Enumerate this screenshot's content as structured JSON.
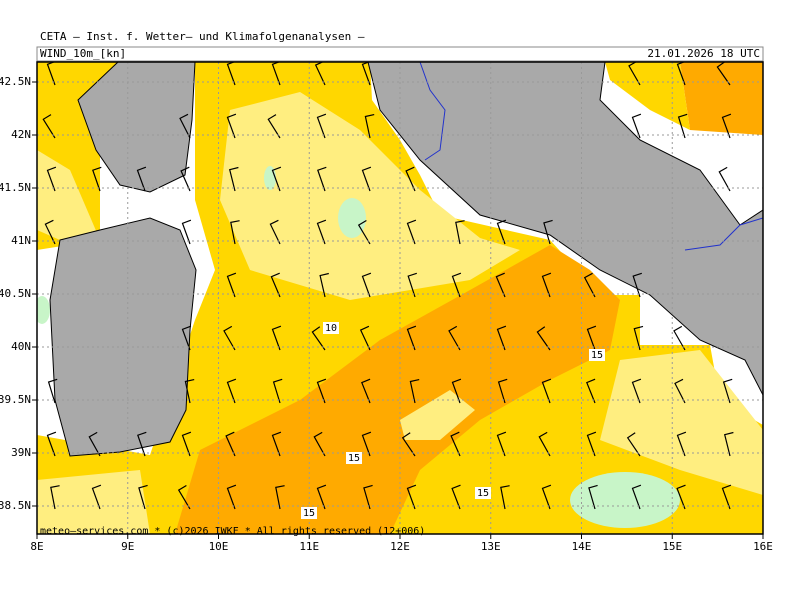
{
  "header": {
    "title": "CETA — Inst. f. Wetter— und Klimafolgenanalysen —",
    "field": "WIND_10m_[kn]",
    "valid_time": "21.01.2026 18 UTC"
  },
  "map": {
    "lon_ticks": [
      {
        "value": 8,
        "label": "8E"
      },
      {
        "value": 9,
        "label": "9E"
      },
      {
        "value": 10,
        "label": "10E"
      },
      {
        "value": 11,
        "label": "11E"
      },
      {
        "value": 12,
        "label": "12E"
      },
      {
        "value": 13,
        "label": "13E"
      },
      {
        "value": 14,
        "label": "14E"
      },
      {
        "value": 15,
        "label": "15E"
      },
      {
        "value": 16,
        "label": "16E"
      }
    ],
    "lat_ticks": [
      {
        "value": 38.5,
        "label": "38.5N"
      },
      {
        "value": 39,
        "label": "39N"
      },
      {
        "value": 39.5,
        "label": "39.5N"
      },
      {
        "value": 40,
        "label": "40N"
      },
      {
        "value": 40.5,
        "label": "40.5N"
      },
      {
        "value": 41,
        "label": "41N"
      },
      {
        "value": 41.5,
        "label": "41.5N"
      },
      {
        "value": 42,
        "label": "42N"
      },
      {
        "value": 42.5,
        "label": "42.5N"
      }
    ],
    "contour_labels": [
      10,
      15,
      15,
      15,
      15
    ]
  },
  "footer": "meteo—services.com * (c)2026 IWKF * All rights reserved (12+006)"
}
